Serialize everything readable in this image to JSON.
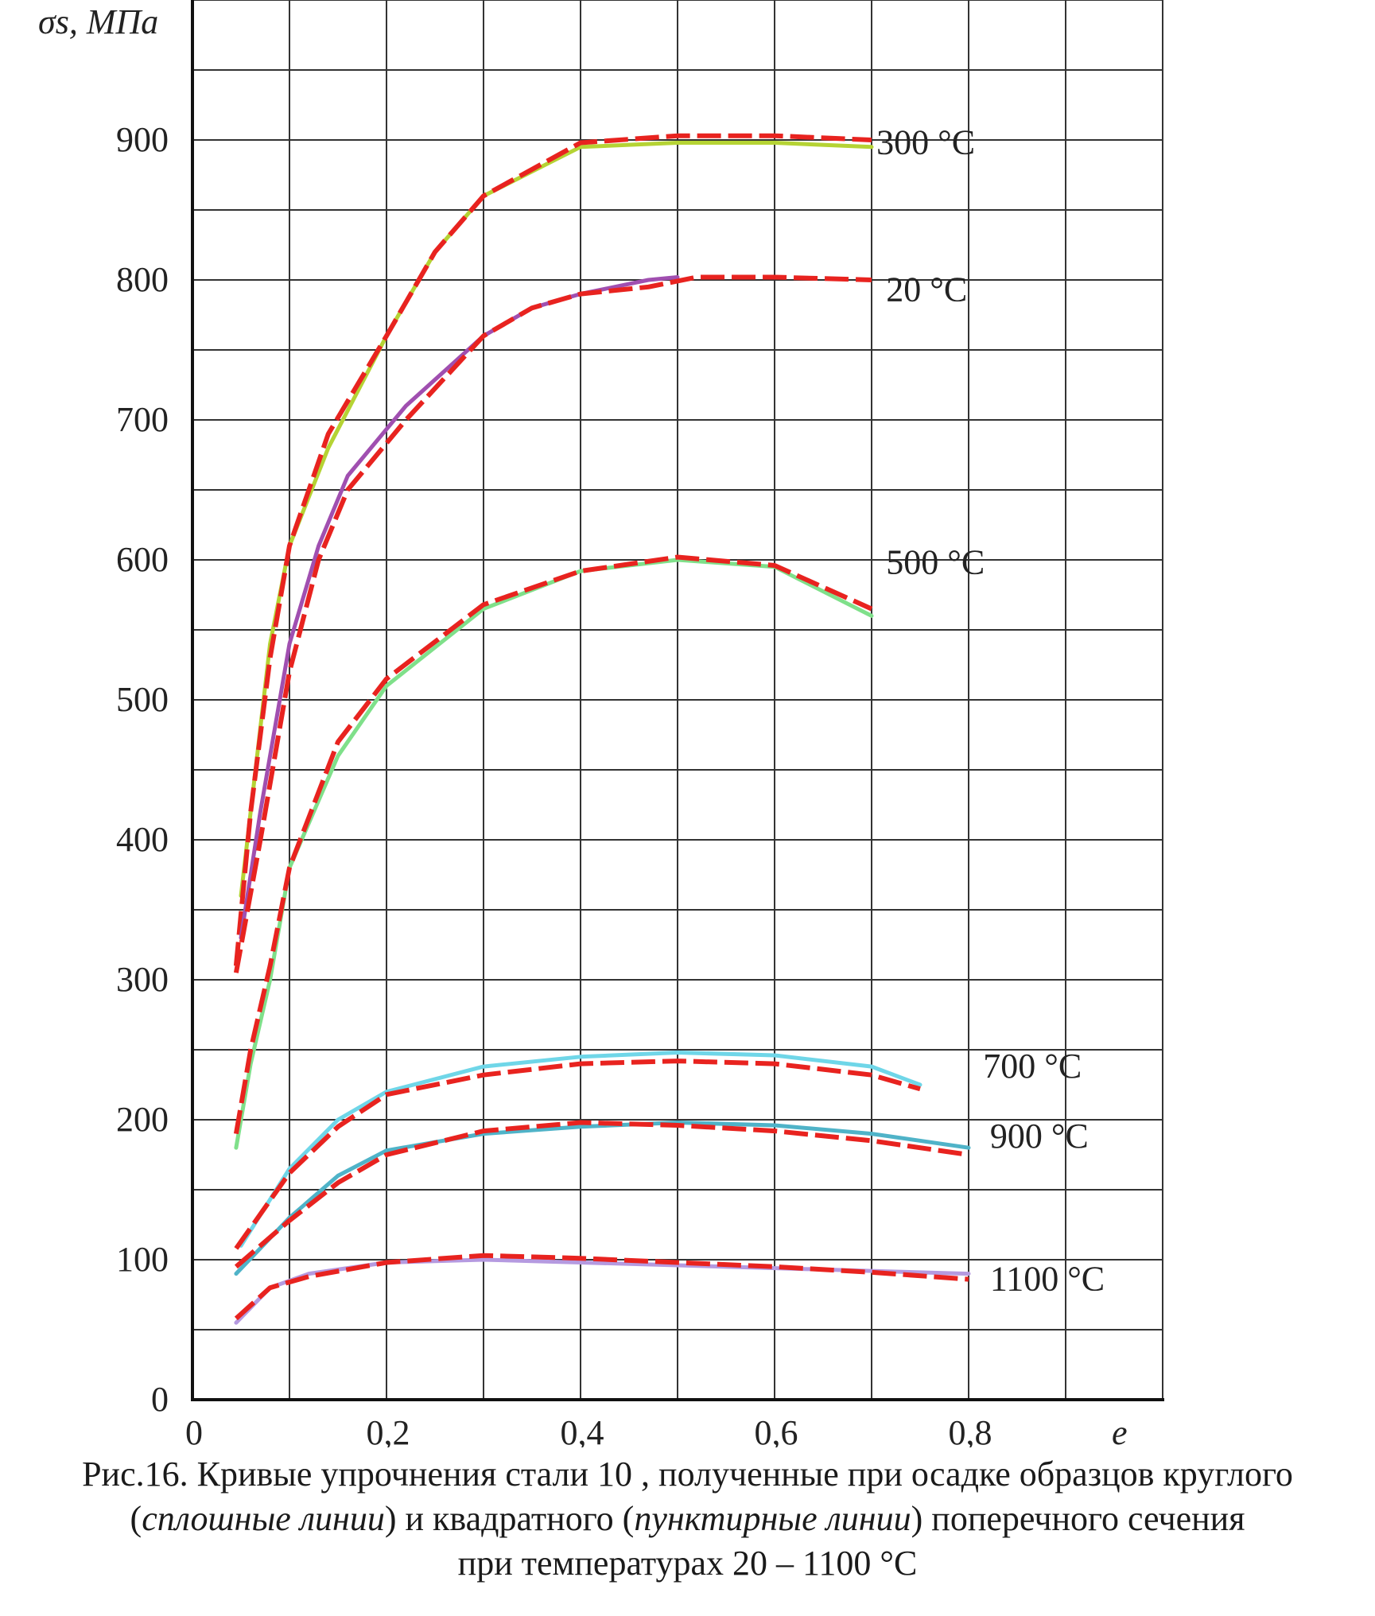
{
  "chart_data": {
    "type": "line",
    "y_axis_title": "σs, МПа",
    "x_axis_title": "e",
    "xlim": [
      0,
      1.0
    ],
    "ylim": [
      0,
      1000
    ],
    "x_ticks": [
      {
        "value": 0,
        "label": "0"
      },
      {
        "value": 0.2,
        "label": "0,2"
      },
      {
        "value": 0.4,
        "label": "0,4"
      },
      {
        "value": 0.6,
        "label": "0,6"
      },
      {
        "value": 0.8,
        "label": "0,8"
      }
    ],
    "y_ticks": [
      {
        "value": 0,
        "label": "0"
      },
      {
        "value": 100,
        "label": "100"
      },
      {
        "value": 200,
        "label": "200"
      },
      {
        "value": 300,
        "label": "300"
      },
      {
        "value": 400,
        "label": "400"
      },
      {
        "value": 500,
        "label": "500"
      },
      {
        "value": 600,
        "label": "600"
      },
      {
        "value": 700,
        "label": "700"
      },
      {
        "value": 800,
        "label": "800"
      },
      {
        "value": 900,
        "label": "900"
      }
    ],
    "grid_x": [
      0.1,
      0.2,
      0.3,
      0.4,
      0.5,
      0.6,
      0.7,
      0.8,
      0.9,
      1.0
    ],
    "grid_y": [
      50,
      100,
      150,
      200,
      250,
      300,
      350,
      400,
      450,
      500,
      550,
      600,
      650,
      700,
      750,
      800,
      850,
      900,
      950,
      1000
    ],
    "grid": true,
    "series": [
      {
        "label": "300 °C",
        "label_at": [
          0.705,
          890
        ],
        "solid_color": "#b5d334",
        "dashed_color": "#e8231f",
        "solid": [
          [
            0.05,
            360
          ],
          [
            0.065,
            450
          ],
          [
            0.08,
            540
          ],
          [
            0.1,
            610
          ],
          [
            0.14,
            680
          ],
          [
            0.2,
            760
          ],
          [
            0.25,
            820
          ],
          [
            0.3,
            860
          ],
          [
            0.4,
            895
          ],
          [
            0.5,
            898
          ],
          [
            0.6,
            898
          ],
          [
            0.7,
            895
          ]
        ],
        "dashed": [
          [
            0.045,
            310
          ],
          [
            0.06,
            420
          ],
          [
            0.08,
            530
          ],
          [
            0.1,
            610
          ],
          [
            0.14,
            690
          ],
          [
            0.2,
            760
          ],
          [
            0.25,
            820
          ],
          [
            0.3,
            860
          ],
          [
            0.4,
            898
          ],
          [
            0.5,
            903
          ],
          [
            0.6,
            903
          ],
          [
            0.7,
            900
          ]
        ]
      },
      {
        "label": "20 °C",
        "label_at": [
          0.715,
          785
        ],
        "solid_color": "#a04fb0",
        "dashed_color": "#e8231f",
        "solid": [
          [
            0.05,
            330
          ],
          [
            0.07,
            420
          ],
          [
            0.1,
            540
          ],
          [
            0.13,
            610
          ],
          [
            0.16,
            660
          ],
          [
            0.22,
            710
          ],
          [
            0.3,
            760
          ],
          [
            0.35,
            780
          ],
          [
            0.4,
            790
          ],
          [
            0.47,
            800
          ],
          [
            0.5,
            802
          ]
        ],
        "dashed": [
          [
            0.045,
            305
          ],
          [
            0.07,
            400
          ],
          [
            0.1,
            520
          ],
          [
            0.13,
            600
          ],
          [
            0.16,
            650
          ],
          [
            0.22,
            700
          ],
          [
            0.3,
            760
          ],
          [
            0.35,
            780
          ],
          [
            0.4,
            790
          ],
          [
            0.47,
            795
          ],
          [
            0.52,
            802
          ],
          [
            0.6,
            802
          ],
          [
            0.7,
            800
          ]
        ]
      },
      {
        "label": "500 °C",
        "label_at": [
          0.715,
          590
        ],
        "solid_color": "#7fe08a",
        "dashed_color": "#e8231f",
        "solid": [
          [
            0.045,
            180
          ],
          [
            0.06,
            240
          ],
          [
            0.08,
            300
          ],
          [
            0.1,
            380
          ],
          [
            0.15,
            460
          ],
          [
            0.2,
            510
          ],
          [
            0.3,
            565
          ],
          [
            0.4,
            592
          ],
          [
            0.5,
            600
          ],
          [
            0.6,
            595
          ],
          [
            0.7,
            560
          ]
        ],
        "dashed": [
          [
            0.045,
            190
          ],
          [
            0.06,
            250
          ],
          [
            0.08,
            310
          ],
          [
            0.1,
            380
          ],
          [
            0.15,
            470
          ],
          [
            0.2,
            515
          ],
          [
            0.3,
            568
          ],
          [
            0.4,
            592
          ],
          [
            0.5,
            602
          ],
          [
            0.6,
            596
          ],
          [
            0.7,
            565
          ]
        ]
      },
      {
        "label": "700 °C",
        "label_at": [
          0.815,
          230
        ],
        "solid_color": "#6fd6e8",
        "dashed_color": "#e8231f",
        "solid": [
          [
            0.05,
            110
          ],
          [
            0.1,
            165
          ],
          [
            0.15,
            200
          ],
          [
            0.2,
            220
          ],
          [
            0.3,
            238
          ],
          [
            0.4,
            245
          ],
          [
            0.5,
            248
          ],
          [
            0.6,
            246
          ],
          [
            0.7,
            238
          ],
          [
            0.75,
            225
          ]
        ],
        "dashed": [
          [
            0.045,
            108
          ],
          [
            0.1,
            162
          ],
          [
            0.15,
            195
          ],
          [
            0.2,
            218
          ],
          [
            0.3,
            232
          ],
          [
            0.4,
            240
          ],
          [
            0.5,
            242
          ],
          [
            0.6,
            240
          ],
          [
            0.7,
            232
          ],
          [
            0.75,
            222
          ]
        ]
      },
      {
        "label": "900 °C",
        "label_at": [
          0.822,
          180
        ],
        "solid_color": "#4fb3c8",
        "dashed_color": "#e8231f",
        "solid": [
          [
            0.045,
            90
          ],
          [
            0.1,
            130
          ],
          [
            0.15,
            160
          ],
          [
            0.2,
            178
          ],
          [
            0.3,
            190
          ],
          [
            0.4,
            195
          ],
          [
            0.5,
            198
          ],
          [
            0.6,
            196
          ],
          [
            0.7,
            190
          ],
          [
            0.8,
            180
          ]
        ],
        "dashed": [
          [
            0.045,
            95
          ],
          [
            0.1,
            128
          ],
          [
            0.15,
            155
          ],
          [
            0.2,
            175
          ],
          [
            0.3,
            192
          ],
          [
            0.4,
            198
          ],
          [
            0.5,
            196
          ],
          [
            0.6,
            192
          ],
          [
            0.7,
            185
          ],
          [
            0.8,
            175
          ]
        ]
      },
      {
        "label": "1100 °C",
        "label_at": [
          0.822,
          78
        ],
        "solid_color": "#b59ae0",
        "dashed_color": "#e8231f",
        "solid": [
          [
            0.045,
            55
          ],
          [
            0.08,
            80
          ],
          [
            0.12,
            90
          ],
          [
            0.2,
            98
          ],
          [
            0.3,
            100
          ],
          [
            0.4,
            98
          ],
          [
            0.5,
            96
          ],
          [
            0.6,
            94
          ],
          [
            0.7,
            92
          ],
          [
            0.8,
            90
          ]
        ],
        "dashed": [
          [
            0.045,
            58
          ],
          [
            0.08,
            80
          ],
          [
            0.12,
            88
          ],
          [
            0.2,
            98
          ],
          [
            0.3,
            103
          ],
          [
            0.4,
            101
          ],
          [
            0.5,
            98
          ],
          [
            0.6,
            95
          ],
          [
            0.7,
            91
          ],
          [
            0.8,
            86
          ]
        ]
      }
    ]
  },
  "caption": {
    "line1": "Рис.16. Кривые упрочнения стали 10 , полученные при осадке образцов круглого",
    "line2_open": "(",
    "line2_em1": "сплошные линии",
    "line2_mid": ") и квадратного (",
    "line2_em2": "пунктирные линии",
    "line2_end": ") поперечного сечения",
    "line3": "при температурах 20 – 1100 °C"
  }
}
